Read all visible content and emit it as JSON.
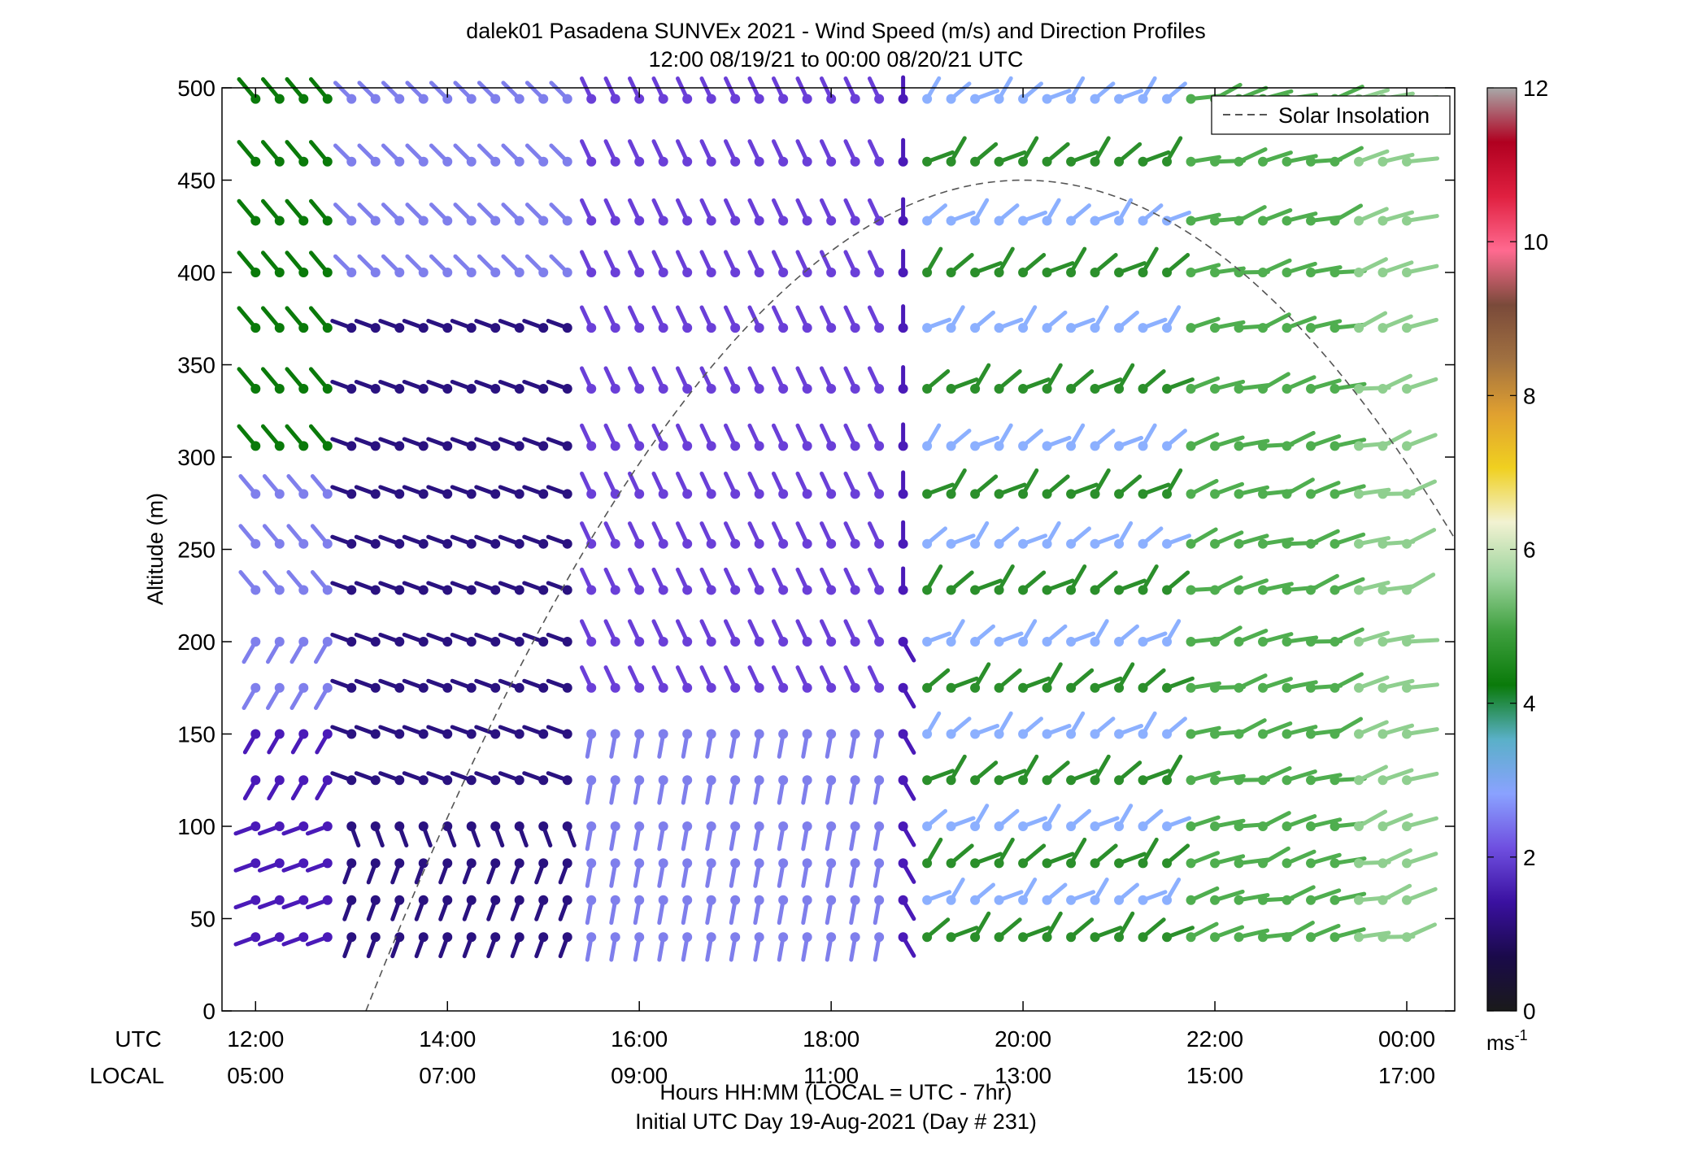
{
  "figure": {
    "title_line1": "dalek01 Pasadena SUNVEx 2021 - Wind Speed (m/s) and Direction Profiles",
    "title_line2": "12:00 08/19/21 to 00:00 08/20/21  UTC",
    "ylabel": "Altitude (m)",
    "row_label_utc": "UTC",
    "row_label_local": "LOCAL",
    "xlabel_line1": "Hours HH:MM  (LOCAL = UTC - 7hr)",
    "xlabel_line2": "Initial UTC Day 19-Aug-2021 (Day # 231)",
    "colorbar_unit": "ms",
    "colorbar_unit_exp": "-1",
    "legend_label": "Solar Insolation"
  },
  "chart_data": {
    "type": "wind-barb-profile",
    "title": "dalek01 Pasadena SUNVEx 2021 - Wind Speed (m/s) and Direction Profiles",
    "subtitle": "12:00 08/19/21 to 00:00 08/20/21  UTC",
    "ylabel": "Altitude (m)",
    "xlabel": "Hours HH:MM  (LOCAL = UTC - 7hr)",
    "ylim": [
      0,
      500
    ],
    "yticks": [
      0,
      50,
      100,
      150,
      200,
      250,
      300,
      350,
      400,
      450,
      500
    ],
    "xlim_hours_utc": [
      11.65,
      24.5
    ],
    "xticks_utc": [
      "12:00",
      "14:00",
      "16:00",
      "18:00",
      "20:00",
      "22:00",
      "00:00"
    ],
    "xticks_local": [
      "05:00",
      "07:00",
      "09:00",
      "11:00",
      "13:00",
      "15:00",
      "17:00"
    ],
    "colorbar": {
      "range": [
        0,
        12
      ],
      "ticks": [
        0,
        2,
        4,
        6,
        8,
        10,
        12
      ],
      "unit": "ms-1",
      "colors": [
        "#1a1a1a",
        "#1a0a4a",
        "#3a10a0",
        "#6f4fe0",
        "#8aa2ff",
        "#5ab0c8",
        "#0a7a0a",
        "#3fa03f",
        "#9fd59f",
        "#f2f2d2",
        "#f0d020",
        "#e0a030",
        "#a07040",
        "#7a4a3a",
        "#ff6a90",
        "#e02040",
        "#b00020",
        "#a8a8a8"
      ]
    },
    "altitudes_m": [
      40,
      60,
      80,
      100,
      125,
      150,
      175,
      200,
      228,
      253,
      280,
      306,
      337,
      370,
      400,
      428,
      460,
      494
    ],
    "times_start_utc_hours": 12.0,
    "times_step_hours": 0.25,
    "times_count": 49,
    "legend": [
      {
        "label": "Solar Insolation",
        "style": "dashed",
        "color": "#555555",
        "position": "top-right"
      }
    ],
    "solar_insolation_curve": {
      "start_hour_utc": 13.15,
      "peak_hour_utc": 20.0,
      "peak_altitude_m": 450,
      "end_hour_utc": 26.85
    }
  }
}
